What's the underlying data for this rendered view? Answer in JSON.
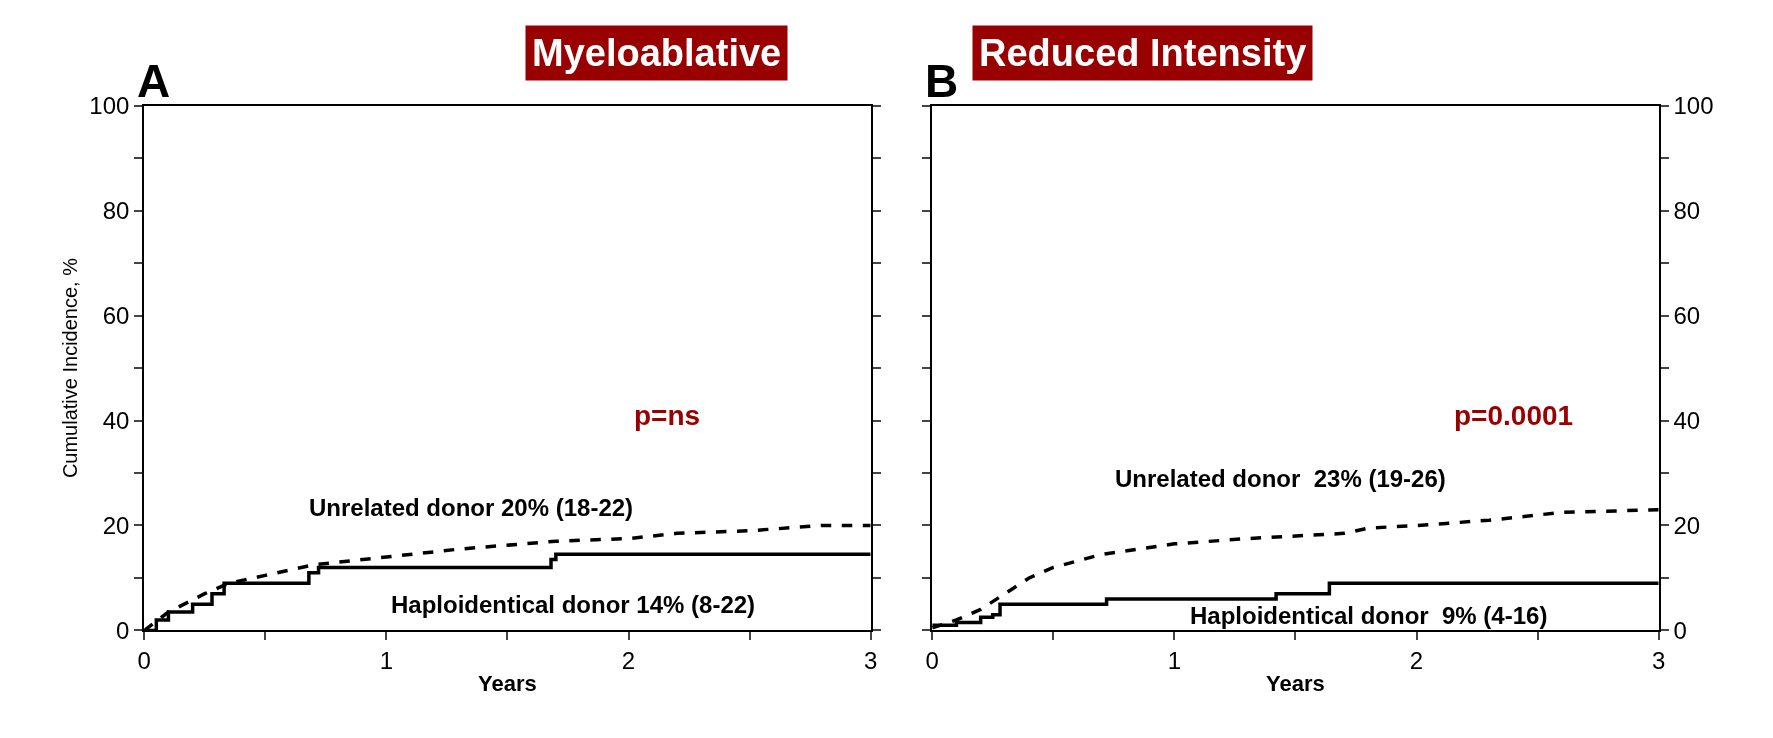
{
  "chart_data": [
    {
      "type": "line",
      "title": "Myeloablative",
      "xlabel": "Years",
      "ylabel": "Cumulative Incidence, %",
      "xlim": [
        0,
        3
      ],
      "ylim": [
        0,
        100
      ],
      "xticks": [
        0,
        {
          "value": 0.5,
          "label": null
        },
        1,
        {
          "value": 1.5,
          "label": null
        },
        2,
        {
          "value": 2.5,
          "label": null
        },
        3
      ],
      "yticks": [
        0,
        {
          "value": 10,
          "label": null
        },
        20,
        {
          "value": 30,
          "label": null
        },
        40,
        {
          "value": 50,
          "label": null
        },
        60,
        {
          "value": 70,
          "label": null
        },
        80,
        {
          "value": 90,
          "label": null
        },
        100
      ],
      "series": [
        {
          "line_style": "dashed",
          "color": "#000000",
          "x": [
            0,
            0.1,
            0.25,
            0.35,
            0.5,
            0.7,
            1,
            1.3,
            1.7,
            2,
            2.2,
            2.5,
            2.8,
            3
          ],
          "values": [
            0,
            3.5,
            7,
            9,
            10.5,
            12.5,
            14,
            15.5,
            17,
            17.5,
            18.5,
            19,
            20,
            20
          ]
        },
        {
          "type": "step",
          "line_style": "solid",
          "color": "#000000",
          "x": [
            0,
            0.05,
            0.1,
            0.2,
            0.28,
            0.33,
            0.66,
            0.68,
            0.72,
            1.66,
            1.68,
            1.7,
            3
          ],
          "values": [
            0,
            2,
            3.5,
            5,
            7,
            9,
            9,
            11,
            12,
            12,
            13.5,
            14.5,
            14.5
          ]
        }
      ],
      "annotations": [
        "A",
        "p=ns",
        "Unrelated donor 20% (18-22)",
        "Haploidentical donor 14% (8-22)"
      ]
    },
    {
      "type": "line",
      "title": "Reduced Intensity",
      "xlabel": "Years",
      "xlim": [
        0,
        3
      ],
      "ylim": [
        0,
        100
      ],
      "xticks": [
        0,
        {
          "value": 0.5,
          "label": null
        },
        1,
        {
          "value": 1.5,
          "label": null
        },
        2,
        {
          "value": 2.5,
          "label": null
        },
        3
      ],
      "yticks": [
        0,
        {
          "value": 10,
          "label": null
        },
        20,
        {
          "value": 30,
          "label": null
        },
        40,
        {
          "value": 50,
          "label": null
        },
        60,
        {
          "value": 70,
          "label": null
        },
        80,
        {
          "value": 90,
          "label": null
        },
        100
      ],
      "series": [
        {
          "line_style": "dashed",
          "color": "#000000",
          "x": [
            0,
            0.1,
            0.2,
            0.3,
            0.4,
            0.5,
            0.7,
            1,
            1.3,
            1.7,
            1.8,
            2,
            2.3,
            2.6,
            3
          ],
          "values": [
            0.5,
            2,
            4,
            7,
            10,
            12,
            14.5,
            16.5,
            17.5,
            18.5,
            19.5,
            20,
            21,
            22.5,
            23
          ]
        },
        {
          "type": "step",
          "line_style": "solid",
          "color": "#000000",
          "x": [
            0,
            0.1,
            0.2,
            0.25,
            0.28,
            0.7,
            0.72,
            1.4,
            1.42,
            1.62,
            1.64,
            3
          ],
          "values": [
            1,
            1.5,
            2.5,
            3,
            5,
            5,
            6,
            6,
            7,
            7,
            9,
            9
          ]
        }
      ],
      "annotations": [
        "B",
        "p=0.0001",
        "Unrelated donor  23% (19-26)",
        "Haploidentical donor  9% (4-16)"
      ]
    }
  ]
}
